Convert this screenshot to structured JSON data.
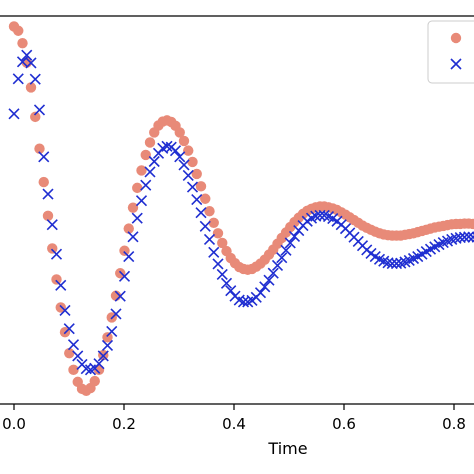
{
  "chart_data": {
    "type": "scatter",
    "xlabel": "Time",
    "ylabel": "",
    "title": "",
    "xlim": [
      0.0,
      0.85
    ],
    "ylim": [
      0.0,
      1.0
    ],
    "x_ticks": [
      0.0,
      0.2,
      0.4,
      0.6,
      0.8
    ],
    "x_tick_labels": [
      "0.0",
      "0.2",
      "0.4",
      "0.6",
      "0.8"
    ],
    "legend": {
      "location": "top-right",
      "entries": 2
    },
    "grid": false,
    "series": [
      {
        "marker": "circle",
        "color": "#e88a78",
        "points": [
          [
            0.0,
            0.973
          ],
          [
            0.00772,
            0.962
          ],
          [
            0.01545,
            0.93
          ],
          [
            0.02318,
            0.88
          ],
          [
            0.03091,
            0.816
          ],
          [
            0.03864,
            0.74
          ],
          [
            0.04636,
            0.658
          ],
          [
            0.05409,
            0.572
          ],
          [
            0.06182,
            0.485
          ],
          [
            0.06955,
            0.401
          ],
          [
            0.07727,
            0.321
          ],
          [
            0.085,
            0.249
          ],
          [
            0.09273,
            0.185
          ],
          [
            0.10045,
            0.131
          ],
          [
            0.10818,
            0.088
          ],
          [
            0.11591,
            0.057
          ],
          [
            0.12364,
            0.039
          ],
          [
            0.13136,
            0.034
          ],
          [
            0.13909,
            0.041
          ],
          [
            0.14682,
            0.059
          ],
          [
            0.15455,
            0.088
          ],
          [
            0.16227,
            0.126
          ],
          [
            0.17,
            0.172
          ],
          [
            0.17773,
            0.223
          ],
          [
            0.18545,
            0.279
          ],
          [
            0.19318,
            0.337
          ],
          [
            0.20091,
            0.395
          ],
          [
            0.20864,
            0.452
          ],
          [
            0.21636,
            0.506
          ],
          [
            0.22409,
            0.557
          ],
          [
            0.23182,
            0.602
          ],
          [
            0.23955,
            0.642
          ],
          [
            0.24727,
            0.674
          ],
          [
            0.255,
            0.7
          ],
          [
            0.26273,
            0.718
          ],
          [
            0.27045,
            0.728
          ],
          [
            0.27818,
            0.731
          ],
          [
            0.28591,
            0.727
          ],
          [
            0.29364,
            0.717
          ],
          [
            0.30136,
            0.7
          ],
          [
            0.30909,
            0.678
          ],
          [
            0.31682,
            0.653
          ],
          [
            0.32455,
            0.624
          ],
          [
            0.33227,
            0.593
          ],
          [
            0.34,
            0.561
          ],
          [
            0.34773,
            0.529
          ],
          [
            0.35545,
            0.497
          ],
          [
            0.36318,
            0.467
          ],
          [
            0.37091,
            0.44
          ],
          [
            0.37864,
            0.415
          ],
          [
            0.38636,
            0.394
          ],
          [
            0.39409,
            0.376
          ],
          [
            0.40182,
            0.363
          ],
          [
            0.40955,
            0.353
          ],
          [
            0.41727,
            0.348
          ],
          [
            0.425,
            0.346
          ],
          [
            0.43273,
            0.348
          ],
          [
            0.44045,
            0.354
          ],
          [
            0.44818,
            0.362
          ],
          [
            0.45591,
            0.372
          ],
          [
            0.46364,
            0.385
          ],
          [
            0.47136,
            0.398
          ],
          [
            0.47909,
            0.413
          ],
          [
            0.48682,
            0.428
          ],
          [
            0.49455,
            0.442
          ],
          [
            0.50227,
            0.456
          ],
          [
            0.51,
            0.469
          ],
          [
            0.51773,
            0.48
          ],
          [
            0.52545,
            0.49
          ],
          [
            0.53318,
            0.498
          ],
          [
            0.54091,
            0.503
          ],
          [
            0.54864,
            0.507
          ],
          [
            0.55636,
            0.509
          ],
          [
            0.56409,
            0.509
          ],
          [
            0.57182,
            0.507
          ],
          [
            0.57955,
            0.504
          ],
          [
            0.58727,
            0.5
          ],
          [
            0.595,
            0.494
          ],
          [
            0.60273,
            0.488
          ],
          [
            0.61045,
            0.481
          ],
          [
            0.61818,
            0.474
          ],
          [
            0.62591,
            0.467
          ],
          [
            0.63364,
            0.46
          ],
          [
            0.64136,
            0.454
          ],
          [
            0.64909,
            0.449
          ],
          [
            0.65682,
            0.444
          ],
          [
            0.66455,
            0.44
          ],
          [
            0.67227,
            0.437
          ],
          [
            0.68,
            0.435
          ],
          [
            0.68773,
            0.434
          ],
          [
            0.69545,
            0.434
          ],
          [
            0.70318,
            0.434
          ],
          [
            0.71091,
            0.436
          ],
          [
            0.71864,
            0.438
          ],
          [
            0.72636,
            0.44
          ],
          [
            0.73409,
            0.443
          ],
          [
            0.74182,
            0.446
          ],
          [
            0.74955,
            0.449
          ],
          [
            0.75727,
            0.452
          ],
          [
            0.765,
            0.455
          ],
          [
            0.77273,
            0.457
          ],
          [
            0.78045,
            0.459
          ],
          [
            0.78818,
            0.461
          ],
          [
            0.79591,
            0.463
          ],
          [
            0.80364,
            0.464
          ],
          [
            0.81136,
            0.464
          ],
          [
            0.81909,
            0.465
          ],
          [
            0.82682,
            0.465
          ],
          [
            0.83455,
            0.464
          ],
          [
            0.84227,
            0.464
          ]
        ]
      },
      {
        "marker": "x",
        "color": "#1f2ed1",
        "points": [
          [
            0.0,
            0.748
          ],
          [
            0.00772,
            0.838
          ],
          [
            0.01545,
            0.882
          ],
          [
            0.02318,
            0.899
          ],
          [
            0.03091,
            0.879
          ],
          [
            0.03864,
            0.837
          ],
          [
            0.04636,
            0.758
          ],
          [
            0.05409,
            0.637
          ],
          [
            0.06182,
            0.541
          ],
          [
            0.06955,
            0.462
          ],
          [
            0.07727,
            0.386
          ],
          [
            0.085,
            0.306
          ],
          [
            0.09273,
            0.241
          ],
          [
            0.10045,
            0.194
          ],
          [
            0.10818,
            0.153
          ],
          [
            0.11591,
            0.124
          ],
          [
            0.12364,
            0.102
          ],
          [
            0.13136,
            0.091
          ],
          [
            0.13909,
            0.088
          ],
          [
            0.14682,
            0.092
          ],
          [
            0.15455,
            0.104
          ],
          [
            0.16227,
            0.124
          ],
          [
            0.17,
            0.151
          ],
          [
            0.17773,
            0.187
          ],
          [
            0.18545,
            0.232
          ],
          [
            0.19318,
            0.278
          ],
          [
            0.20091,
            0.329
          ],
          [
            0.20864,
            0.38
          ],
          [
            0.21636,
            0.431
          ],
          [
            0.22409,
            0.479
          ],
          [
            0.23182,
            0.524
          ],
          [
            0.23955,
            0.564
          ],
          [
            0.24727,
            0.598
          ],
          [
            0.255,
            0.625
          ],
          [
            0.26273,
            0.646
          ],
          [
            0.27045,
            0.659
          ],
          [
            0.27818,
            0.664
          ],
          [
            0.28591,
            0.662
          ],
          [
            0.29364,
            0.653
          ],
          [
            0.30136,
            0.637
          ],
          [
            0.30909,
            0.616
          ],
          [
            0.31682,
            0.589
          ],
          [
            0.32455,
            0.559
          ],
          [
            0.33227,
            0.527
          ],
          [
            0.34,
            0.493
          ],
          [
            0.34773,
            0.458
          ],
          [
            0.35545,
            0.424
          ],
          [
            0.36318,
            0.391
          ],
          [
            0.37091,
            0.361
          ],
          [
            0.37864,
            0.334
          ],
          [
            0.38636,
            0.311
          ],
          [
            0.39409,
            0.292
          ],
          [
            0.40182,
            0.278
          ],
          [
            0.40955,
            0.268
          ],
          [
            0.41727,
            0.263
          ],
          [
            0.425,
            0.263
          ],
          [
            0.43273,
            0.267
          ],
          [
            0.44045,
            0.275
          ],
          [
            0.44818,
            0.287
          ],
          [
            0.45591,
            0.302
          ],
          [
            0.46364,
            0.319
          ],
          [
            0.47136,
            0.337
          ],
          [
            0.47909,
            0.357
          ],
          [
            0.48682,
            0.377
          ],
          [
            0.49455,
            0.396
          ],
          [
            0.50227,
            0.415
          ],
          [
            0.51,
            0.432
          ],
          [
            0.51773,
            0.447
          ],
          [
            0.52545,
            0.46
          ],
          [
            0.53318,
            0.471
          ],
          [
            0.54091,
            0.479
          ],
          [
            0.54864,
            0.484
          ],
          [
            0.55636,
            0.486
          ],
          [
            0.56409,
            0.486
          ],
          [
            0.57182,
            0.483
          ],
          [
            0.57955,
            0.478
          ],
          [
            0.58727,
            0.471
          ],
          [
            0.595,
            0.462
          ],
          [
            0.60273,
            0.452
          ],
          [
            0.61045,
            0.441
          ],
          [
            0.61818,
            0.43
          ],
          [
            0.62591,
            0.419
          ],
          [
            0.63364,
            0.408
          ],
          [
            0.64136,
            0.397
          ],
          [
            0.64909,
            0.388
          ],
          [
            0.65682,
            0.38
          ],
          [
            0.66455,
            0.373
          ],
          [
            0.67227,
            0.368
          ],
          [
            0.68,
            0.364
          ],
          [
            0.68773,
            0.362
          ],
          [
            0.69545,
            0.362
          ],
          [
            0.70318,
            0.363
          ],
          [
            0.71091,
            0.366
          ],
          [
            0.71864,
            0.37
          ],
          [
            0.72636,
            0.375
          ],
          [
            0.73409,
            0.38
          ],
          [
            0.74182,
            0.386
          ],
          [
            0.74955,
            0.393
          ],
          [
            0.75727,
            0.399
          ],
          [
            0.765,
            0.405
          ],
          [
            0.77273,
            0.411
          ],
          [
            0.78045,
            0.416
          ],
          [
            0.78818,
            0.42
          ],
          [
            0.79591,
            0.424
          ],
          [
            0.80364,
            0.427
          ],
          [
            0.81136,
            0.429
          ],
          [
            0.81909,
            0.43
          ],
          [
            0.82682,
            0.431
          ],
          [
            0.83455,
            0.43
          ],
          [
            0.84227,
            0.43
          ]
        ]
      }
    ]
  }
}
